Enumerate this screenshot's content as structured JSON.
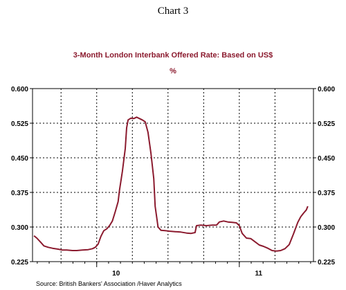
{
  "chart_data": {
    "type": "line",
    "header": "Chart 3",
    "title": "3-Month London Interbank Offered Rate: Based on US$",
    "unit": "%",
    "source": "Source:  British Bankers' Association /Haver Analytics",
    "ylim": [
      0.225,
      0.6
    ],
    "xlim": [
      2009.55,
      2011.52
    ],
    "y_ticks": [
      "0.225",
      "0.300",
      "0.375",
      "0.450",
      "0.525",
      "0.600"
    ],
    "x_tick_labels": [
      {
        "label": "10",
        "at": 2010.0
      },
      {
        "label": "11",
        "at": 2011.0
      }
    ],
    "x_gridlines": [
      2009.75,
      2010.0,
      2010.25,
      2010.5,
      2010.75,
      2011.0,
      2011.25
    ],
    "grid": true,
    "line_color": "#8b1a2e",
    "accent_color": "#8b1a2e",
    "series": [
      {
        "values": [
          [
            2009.56,
            0.281
          ],
          [
            2009.58,
            0.276
          ],
          [
            2009.61,
            0.266
          ],
          [
            2009.63,
            0.259
          ],
          [
            2009.66,
            0.256
          ],
          [
            2009.69,
            0.254
          ],
          [
            2009.73,
            0.252
          ],
          [
            2009.76,
            0.25
          ],
          [
            2009.79,
            0.25
          ],
          [
            2009.83,
            0.249
          ],
          [
            2009.86,
            0.249
          ],
          [
            2009.9,
            0.25
          ],
          [
            2009.94,
            0.251
          ],
          [
            2009.97,
            0.253
          ],
          [
            2009.99,
            0.256
          ],
          [
            2010.01,
            0.263
          ],
          [
            2010.03,
            0.28
          ],
          [
            2010.05,
            0.292
          ],
          [
            2010.07,
            0.296
          ],
          [
            2010.09,
            0.303
          ],
          [
            2010.11,
            0.313
          ],
          [
            2010.13,
            0.333
          ],
          [
            2010.15,
            0.355
          ],
          [
            2010.16,
            0.38
          ],
          [
            2010.18,
            0.42
          ],
          [
            2010.2,
            0.47
          ],
          [
            2010.21,
            0.515
          ],
          [
            2010.22,
            0.532
          ],
          [
            2010.24,
            0.536
          ],
          [
            2010.26,
            0.535
          ],
          [
            2010.28,
            0.538
          ],
          [
            2010.3,
            0.535
          ],
          [
            2010.32,
            0.532
          ],
          [
            2010.34,
            0.528
          ],
          [
            2010.36,
            0.505
          ],
          [
            2010.38,
            0.46
          ],
          [
            2010.4,
            0.405
          ],
          [
            2010.41,
            0.345
          ],
          [
            2010.43,
            0.3
          ],
          [
            2010.45,
            0.293
          ],
          [
            2010.48,
            0.292
          ],
          [
            2010.51,
            0.291
          ],
          [
            2010.55,
            0.29
          ],
          [
            2010.59,
            0.289
          ],
          [
            2010.63,
            0.287
          ],
          [
            2010.66,
            0.286
          ],
          [
            2010.69,
            0.288
          ],
          [
            2010.7,
            0.303
          ],
          [
            2010.73,
            0.304
          ],
          [
            2010.77,
            0.303
          ],
          [
            2010.81,
            0.304
          ],
          [
            2010.84,
            0.304
          ],
          [
            2010.86,
            0.311
          ],
          [
            2010.89,
            0.313
          ],
          [
            2010.92,
            0.311
          ],
          [
            2010.95,
            0.31
          ],
          [
            2010.98,
            0.309
          ],
          [
            2011.0,
            0.303
          ],
          [
            2011.02,
            0.286
          ],
          [
            2011.05,
            0.276
          ],
          [
            2011.08,
            0.275
          ],
          [
            2011.11,
            0.268
          ],
          [
            2011.14,
            0.261
          ],
          [
            2011.17,
            0.258
          ],
          [
            2011.2,
            0.254
          ],
          [
            2011.23,
            0.249
          ],
          [
            2011.26,
            0.248
          ],
          [
            2011.29,
            0.249
          ],
          [
            2011.32,
            0.253
          ],
          [
            2011.35,
            0.262
          ],
          [
            2011.38,
            0.285
          ],
          [
            2011.41,
            0.31
          ],
          [
            2011.43,
            0.322
          ],
          [
            2011.45,
            0.33
          ],
          [
            2011.47,
            0.337
          ],
          [
            2011.48,
            0.345
          ]
        ]
      }
    ]
  }
}
